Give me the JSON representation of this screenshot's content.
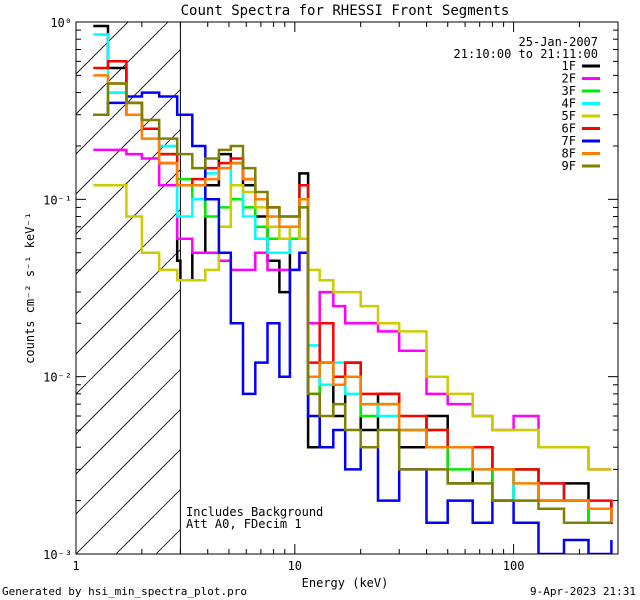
{
  "chart_data": {
    "type": "line",
    "title": "Count Spectra for RHESSI Front Segments",
    "xlabel": "Energy (keV)",
    "ylabel": "counts cm⁻² s⁻¹ keV⁻¹",
    "xscale": "log",
    "yscale": "log",
    "xlim": [
      1,
      300
    ],
    "ylim": [
      0.001,
      1
    ],
    "xticks": [
      {
        "v": 1,
        "label": "1"
      },
      {
        "v": 10,
        "label": "10"
      },
      {
        "v": 100,
        "label": "100"
      }
    ],
    "yticks": [
      {
        "v": 1,
        "label": "10⁰"
      },
      {
        "v": 0.1,
        "label": "10⁻¹"
      },
      {
        "v": 0.01,
        "label": "10⁻²"
      },
      {
        "v": 0.001,
        "label": "10⁻³"
      }
    ],
    "grid": false,
    "legend_position": "top-right",
    "date": "25-Jan-2007",
    "time_range": "21:10:00 to 21:11:00",
    "annotations": [
      "Includes Background",
      "Att A0, FDecim 1"
    ],
    "shaded_region_max_keV": 3,
    "series": [
      {
        "name": "1F",
        "color": "#000000",
        "x": [
          1.2,
          1.4,
          1.7,
          2.0,
          2.4,
          2.9,
          3.0,
          3.4,
          3.9,
          4.5,
          5.1,
          5.8,
          6.6,
          7.5,
          8.5,
          9.5,
          10.5,
          11.5,
          13,
          15,
          17,
          20,
          24,
          30,
          40,
          50,
          65,
          80,
          100,
          130,
          170,
          220,
          280
        ],
        "y": [
          0.95,
          0.55,
          0.3,
          0.25,
          0.16,
          0.045,
          0.035,
          0.05,
          0.12,
          0.18,
          0.16,
          0.12,
          0.08,
          0.045,
          0.03,
          0.06,
          0.14,
          0.004,
          0.012,
          0.006,
          0.012,
          0.005,
          0.008,
          0.004,
          0.006,
          0.0025,
          0.004,
          0.002,
          0.003,
          0.002,
          0.0025,
          0.0015,
          0.002
        ]
      },
      {
        "name": "2F",
        "color": "#ff00ff",
        "x": [
          1.2,
          1.4,
          1.7,
          2.0,
          2.4,
          2.9,
          3.4,
          3.9,
          4.5,
          5.1,
          5.8,
          6.6,
          7.5,
          8.5,
          9.5,
          10.5,
          11.5,
          13,
          15,
          17,
          20,
          24,
          30,
          40,
          50,
          65,
          80,
          100,
          130,
          170,
          220,
          280
        ],
        "y": [
          0.19,
          0.19,
          0.18,
          0.17,
          0.12,
          0.06,
          0.05,
          0.05,
          0.045,
          0.04,
          0.04,
          0.05,
          0.04,
          0.04,
          0.04,
          0.05,
          0.02,
          0.03,
          0.025,
          0.02,
          0.02,
          0.018,
          0.014,
          0.008,
          0.007,
          0.006,
          0.005,
          0.006,
          0.004,
          0.004,
          0.003,
          0.003
        ]
      },
      {
        "name": "3F",
        "color": "#00ee00",
        "x": [
          1.2,
          1.4,
          1.7,
          2.0,
          2.4,
          2.9,
          3.4,
          3.9,
          4.5,
          5.1,
          5.8,
          6.6,
          7.5,
          8.5,
          9.5,
          10.5,
          11.5,
          13,
          15,
          17,
          20,
          24,
          30,
          40,
          50,
          65,
          80,
          100,
          130,
          170,
          220,
          280
        ],
        "y": [
          0.3,
          0.4,
          0.35,
          0.25,
          0.18,
          0.13,
          0.1,
          0.08,
          0.09,
          0.1,
          0.09,
          0.07,
          0.06,
          0.06,
          0.06,
          0.1,
          0.008,
          0.012,
          0.009,
          0.01,
          0.006,
          0.007,
          0.005,
          0.005,
          0.003,
          0.004,
          0.002,
          0.003,
          0.002,
          0.002,
          0.0015,
          0.0015
        ]
      },
      {
        "name": "4F",
        "color": "#00ffff",
        "x": [
          1.2,
          1.4,
          1.7,
          2.0,
          2.4,
          2.9,
          3.4,
          3.9,
          4.5,
          5.1,
          5.8,
          6.6,
          7.5,
          8.5,
          9.5,
          10.5,
          11.5,
          13,
          15,
          17,
          20,
          24,
          30,
          40,
          50,
          65,
          80,
          100,
          130,
          170,
          220,
          280
        ],
        "y": [
          0.85,
          0.4,
          0.3,
          0.25,
          0.2,
          0.08,
          0.1,
          0.14,
          0.15,
          0.12,
          0.08,
          0.06,
          0.05,
          0.05,
          0.07,
          0.12,
          0.015,
          0.009,
          0.012,
          0.008,
          0.007,
          0.006,
          0.005,
          0.004,
          0.004,
          0.003,
          0.003,
          0.002,
          0.0025,
          0.002,
          0.0018,
          0.0018
        ]
      },
      {
        "name": "5F",
        "color": "#cccc00",
        "x": [
          1.2,
          1.4,
          1.7,
          2.0,
          2.4,
          2.9,
          3.4,
          3.9,
          4.5,
          5.1,
          5.8,
          6.6,
          7.5,
          8.5,
          9.5,
          10.5,
          11.5,
          13,
          15,
          17,
          20,
          24,
          30,
          40,
          50,
          65,
          80,
          100,
          130,
          170,
          220,
          280
        ],
        "y": [
          0.12,
          0.12,
          0.08,
          0.05,
          0.04,
          0.035,
          0.035,
          0.04,
          0.07,
          0.12,
          0.11,
          0.09,
          0.07,
          0.06,
          0.07,
          0.06,
          0.04,
          0.035,
          0.03,
          0.03,
          0.025,
          0.02,
          0.018,
          0.01,
          0.008,
          0.006,
          0.005,
          0.005,
          0.004,
          0.004,
          0.003,
          0.003
        ]
      },
      {
        "name": "6F",
        "color": "#ff0000",
        "x": [
          1.2,
          1.4,
          1.7,
          2.0,
          2.4,
          2.9,
          3.4,
          3.9,
          4.5,
          5.1,
          5.8,
          6.6,
          7.5,
          8.5,
          9.5,
          10.5,
          11.5,
          13,
          15,
          17,
          20,
          24,
          30,
          40,
          50,
          65,
          80,
          100,
          130,
          170,
          220,
          280
        ],
        "y": [
          0.55,
          0.6,
          0.35,
          0.25,
          0.18,
          0.12,
          0.13,
          0.15,
          0.16,
          0.17,
          0.13,
          0.1,
          0.09,
          0.08,
          0.08,
          0.12,
          0.012,
          0.02,
          0.01,
          0.012,
          0.008,
          0.008,
          0.006,
          0.005,
          0.004,
          0.004,
          0.003,
          0.003,
          0.0025,
          0.002,
          0.002,
          0.0015
        ]
      },
      {
        "name": "7F",
        "color": "#0000ff",
        "x": [
          1.2,
          1.4,
          1.7,
          2.0,
          2.4,
          2.9,
          3.4,
          3.9,
          4.5,
          5.1,
          5.8,
          6.6,
          7.5,
          8.5,
          9.5,
          10.5,
          11.5,
          13,
          15,
          17,
          20,
          24,
          30,
          40,
          50,
          65,
          80,
          100,
          130,
          170,
          220,
          280
        ],
        "y": [
          0.3,
          0.35,
          0.38,
          0.4,
          0.38,
          0.3,
          0.2,
          0.1,
          0.05,
          0.02,
          0.008,
          0.012,
          0.02,
          0.01,
          0.04,
          0.05,
          0.006,
          0.004,
          0.005,
          0.003,
          0.004,
          0.002,
          0.003,
          0.0015,
          0.002,
          0.0015,
          0.002,
          0.0015,
          0.001,
          0.0012,
          0.001,
          0.0012
        ]
      },
      {
        "name": "8F",
        "color": "#ff8000",
        "x": [
          1.2,
          1.4,
          1.7,
          2.0,
          2.4,
          2.9,
          3.4,
          3.9,
          4.5,
          5.1,
          5.8,
          6.6,
          7.5,
          8.5,
          9.5,
          10.5,
          11.5,
          13,
          15,
          17,
          20,
          24,
          30,
          40,
          50,
          65,
          80,
          100,
          130,
          170,
          220,
          280
        ],
        "y": [
          0.5,
          0.45,
          0.3,
          0.22,
          0.16,
          0.12,
          0.12,
          0.13,
          0.15,
          0.16,
          0.13,
          0.1,
          0.08,
          0.07,
          0.07,
          0.1,
          0.01,
          0.012,
          0.009,
          0.01,
          0.007,
          0.007,
          0.005,
          0.004,
          0.004,
          0.003,
          0.003,
          0.0025,
          0.002,
          0.002,
          0.0018,
          0.0015
        ]
      },
      {
        "name": "9F",
        "color": "#808000",
        "x": [
          1.2,
          1.4,
          1.7,
          2.0,
          2.4,
          2.9,
          3.4,
          3.9,
          4.5,
          5.1,
          5.8,
          6.6,
          7.5,
          8.5,
          9.5,
          10.5,
          11.5,
          13,
          15,
          17,
          20,
          24,
          30,
          40,
          50,
          65,
          80,
          100,
          130,
          170,
          220,
          280
        ],
        "y": [
          0.3,
          0.45,
          0.35,
          0.28,
          0.22,
          0.18,
          0.15,
          0.17,
          0.19,
          0.2,
          0.15,
          0.11,
          0.09,
          0.08,
          0.08,
          0.09,
          0.008,
          0.006,
          0.007,
          0.005,
          0.004,
          0.005,
          0.003,
          0.003,
          0.0025,
          0.0025,
          0.002,
          0.002,
          0.0018,
          0.0015,
          0.0015,
          0.0015
        ]
      }
    ]
  },
  "footer": {
    "generated_by": "Generated by hsi_min_spectra_plot.pro",
    "timestamp": "9-Apr-2023 21:31"
  }
}
